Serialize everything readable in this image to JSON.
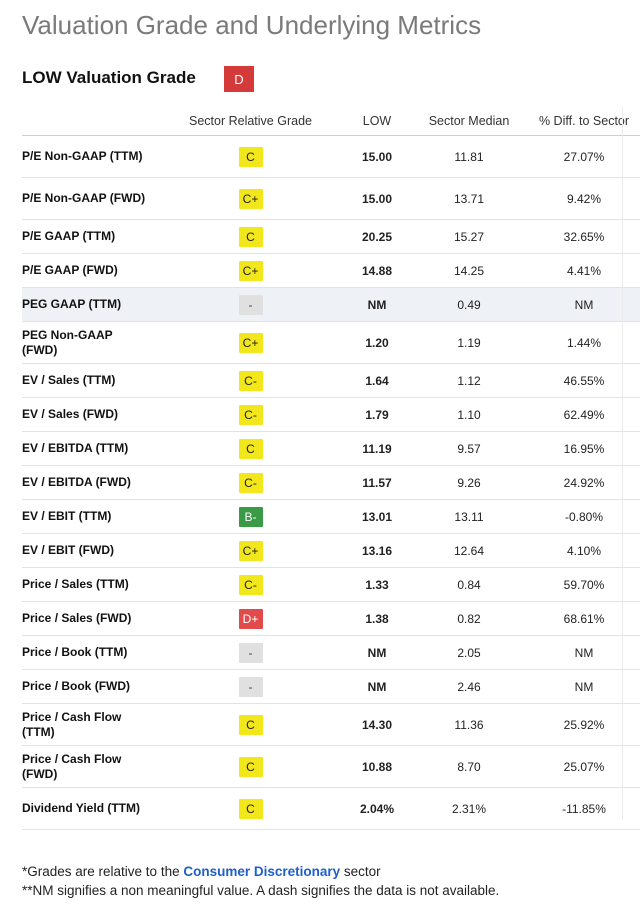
{
  "title": "Valuation Grade and Underlying Metrics",
  "grade_heading": {
    "label": "LOW Valuation Grade",
    "grade": "D",
    "grade_color": "#d53a3a"
  },
  "colors": {
    "yellow": "#f2e71a",
    "green": "#3a9a46",
    "red": "#e14b4b",
    "na": "#e0e0e0",
    "link": "#1f5ec9"
  },
  "table": {
    "headers": [
      "",
      "Sector Relative Grade",
      "LOW",
      "Sector Median",
      "% Diff. to Sector"
    ],
    "rows": [
      {
        "metric": "P/E Non-GAAP (TTM)",
        "lines": 2,
        "grade": "C",
        "color": "yellow",
        "low": "15.00",
        "median": "11.81",
        "diff": "27.07%"
      },
      {
        "metric": "P/E Non-GAAP (FWD)",
        "lines": 2,
        "grade": "C+",
        "color": "yellow",
        "low": "15.00",
        "median": "13.71",
        "diff": "9.42%"
      },
      {
        "metric": "P/E GAAP (TTM)",
        "lines": 1,
        "grade": "C",
        "color": "yellow",
        "low": "20.25",
        "median": "15.27",
        "diff": "32.65%"
      },
      {
        "metric": "P/E GAAP (FWD)",
        "lines": 1,
        "grade": "C+",
        "color": "yellow",
        "low": "14.88",
        "median": "14.25",
        "diff": "4.41%"
      },
      {
        "metric": "PEG GAAP (TTM)",
        "lines": 1,
        "grade": "-",
        "color": "na",
        "low": "NM",
        "median": "0.49",
        "diff": "NM",
        "highlight": true
      },
      {
        "metric": "PEG Non-GAAP (FWD)",
        "lines": 2,
        "grade": "C+",
        "color": "yellow",
        "low": "1.20",
        "median": "1.19",
        "diff": "1.44%"
      },
      {
        "metric": "EV / Sales (TTM)",
        "lines": 1,
        "grade": "C-",
        "color": "yellow",
        "low": "1.64",
        "median": "1.12",
        "diff": "46.55%"
      },
      {
        "metric": "EV / Sales (FWD)",
        "lines": 1,
        "grade": "C-",
        "color": "yellow",
        "low": "1.79",
        "median": "1.10",
        "diff": "62.49%"
      },
      {
        "metric": "EV / EBITDA (TTM)",
        "lines": 1,
        "grade": "C",
        "color": "yellow",
        "low": "11.19",
        "median": "9.57",
        "diff": "16.95%"
      },
      {
        "metric": "EV / EBITDA (FWD)",
        "lines": 1,
        "grade": "C-",
        "color": "yellow",
        "low": "11.57",
        "median": "9.26",
        "diff": "24.92%"
      },
      {
        "metric": "EV / EBIT (TTM)",
        "lines": 1,
        "grade": "B-",
        "color": "green",
        "low": "13.01",
        "median": "13.11",
        "diff": "-0.80%"
      },
      {
        "metric": "EV / EBIT (FWD)",
        "lines": 1,
        "grade": "C+",
        "color": "yellow",
        "low": "13.16",
        "median": "12.64",
        "diff": "4.10%"
      },
      {
        "metric": "Price / Sales (TTM)",
        "lines": 1,
        "grade": "C-",
        "color": "yellow",
        "low": "1.33",
        "median": "0.84",
        "diff": "59.70%"
      },
      {
        "metric": "Price / Sales (FWD)",
        "lines": 1,
        "grade": "D+",
        "color": "red",
        "low": "1.38",
        "median": "0.82",
        "diff": "68.61%"
      },
      {
        "metric": "Price / Book (TTM)",
        "lines": 1,
        "grade": "-",
        "color": "na",
        "low": "NM",
        "median": "2.05",
        "diff": "NM"
      },
      {
        "metric": "Price / Book (FWD)",
        "lines": 1,
        "grade": "-",
        "color": "na",
        "low": "NM",
        "median": "2.46",
        "diff": "NM"
      },
      {
        "metric": "Price / Cash Flow (TTM)",
        "lines": 2,
        "grade": "C",
        "color": "yellow",
        "low": "14.30",
        "median": "11.36",
        "diff": "25.92%"
      },
      {
        "metric": "Price / Cash Flow (FWD)",
        "lines": 2,
        "grade": "C",
        "color": "yellow",
        "low": "10.88",
        "median": "8.70",
        "diff": "25.07%"
      },
      {
        "metric": "Dividend Yield (TTM)",
        "lines": 2,
        "grade": "C",
        "color": "yellow",
        "low": "2.04%",
        "median": "2.31%",
        "diff": "-11.85%"
      }
    ]
  },
  "footnotes": {
    "line1_prefix": "*Grades are relative to the ",
    "line1_link": "Consumer Discretionary",
    "line1_suffix": " sector",
    "line2": "**NM signifies a non meaningful value. A dash signifies the data is not available."
  }
}
